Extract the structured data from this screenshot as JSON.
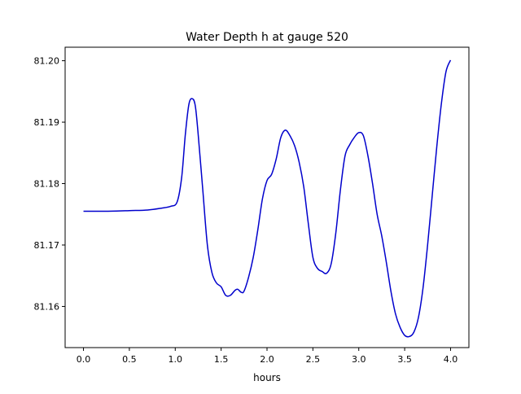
{
  "chart_data": {
    "type": "line",
    "title": "Water Depth h at gauge 520",
    "xlabel": "hours",
    "ylabel": "",
    "xlim": [
      -0.2,
      4.2
    ],
    "ylim": [
      81.1533,
      81.2022
    ],
    "xticks": [
      0.0,
      0.5,
      1.0,
      1.5,
      2.0,
      2.5,
      3.0,
      3.5,
      4.0
    ],
    "xtick_labels": [
      "0.0",
      "0.5",
      "1.0",
      "1.5",
      "2.0",
      "2.5",
      "3.0",
      "3.5",
      "4.0"
    ],
    "yticks": [
      81.16,
      81.17,
      81.18,
      81.19,
      81.2
    ],
    "ytick_labels": [
      "81.16",
      "81.17",
      "81.18",
      "81.19",
      "81.20"
    ],
    "grid": false,
    "series": [
      {
        "name": "",
        "color": "#0000cc",
        "x": [
          0.0,
          0.25,
          0.5,
          0.7,
          0.85,
          0.95,
          1.02,
          1.07,
          1.11,
          1.15,
          1.19,
          1.22,
          1.25,
          1.3,
          1.35,
          1.4,
          1.45,
          1.5,
          1.55,
          1.6,
          1.65,
          1.68,
          1.72,
          1.75,
          1.8,
          1.85,
          1.9,
          1.95,
          2.0,
          2.05,
          2.1,
          2.15,
          2.2,
          2.25,
          2.3,
          2.35,
          2.4,
          2.45,
          2.5,
          2.55,
          2.6,
          2.65,
          2.7,
          2.75,
          2.8,
          2.85,
          2.9,
          2.95,
          3.0,
          3.05,
          3.1,
          3.15,
          3.2,
          3.25,
          3.3,
          3.35,
          3.4,
          3.45,
          3.5,
          3.55,
          3.6,
          3.65,
          3.7,
          3.75,
          3.8,
          3.85,
          3.9,
          3.95,
          4.0
        ],
        "y": [
          81.1755,
          81.1755,
          81.1756,
          81.1757,
          81.176,
          81.1763,
          81.177,
          81.181,
          81.188,
          81.193,
          81.1938,
          81.1925,
          81.188,
          81.179,
          81.17,
          81.1655,
          81.1638,
          81.1632,
          81.1618,
          81.1618,
          81.1626,
          81.1628,
          81.1623,
          81.1625,
          81.1648,
          81.168,
          81.1725,
          81.1775,
          81.1805,
          81.1815,
          81.184,
          81.1875,
          81.1887,
          81.1878,
          81.1862,
          81.1835,
          81.1795,
          81.1735,
          81.168,
          81.1662,
          81.1657,
          81.1654,
          81.167,
          81.172,
          81.179,
          81.1845,
          81.1863,
          81.1875,
          81.1883,
          81.1878,
          81.1845,
          81.18,
          81.175,
          81.1715,
          81.1672,
          81.1625,
          81.1588,
          81.1566,
          81.1553,
          81.1551,
          81.1558,
          81.1582,
          81.163,
          81.17,
          81.178,
          81.186,
          81.193,
          81.1982,
          81.2001
        ]
      }
    ]
  }
}
